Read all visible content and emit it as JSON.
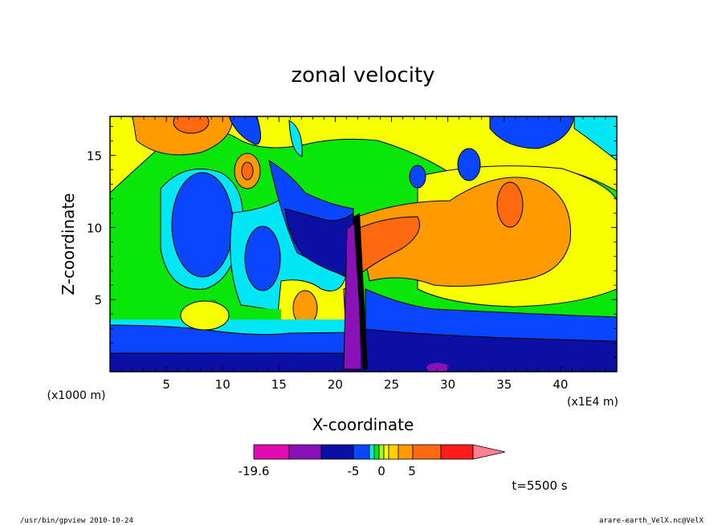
{
  "chart_data": {
    "type": "heatmap",
    "title": "zonal velocity",
    "xlabel": "X-coordinate",
    "ylabel": "Z-coordinate",
    "x_unit_left": "(x1000 m)",
    "x_unit_right": "(x1E4 m)",
    "xlim": [
      0,
      45
    ],
    "ylim": [
      0,
      17.7
    ],
    "x_ticks": [
      5,
      10,
      15,
      20,
      25,
      30,
      35,
      40
    ],
    "y_ticks": [
      5,
      10,
      15
    ],
    "colorbar": {
      "labels": [
        {
          "value": -19.6,
          "text": "-19.6"
        },
        {
          "value": -5,
          "text": "-5"
        },
        {
          "value": 0,
          "text": "0"
        },
        {
          "value": 5,
          "text": "5"
        }
      ],
      "colors": [
        "#e20ab0",
        "#8a10b8",
        "#0c0fa4",
        "#0a46ff",
        "#00e6f4",
        "#08e60a",
        "#a8f42c",
        "#f8ff00",
        "#ffd000",
        "#ff9a00",
        "#ff6a10",
        "#ff1c1c",
        "#ff8090"
      ]
    },
    "time_label": "t=5500 s",
    "footer_left": "/usr/bin/gpview  2010-10-24",
    "footer_right": "arare-earth_VelX.nc@VelX"
  },
  "colors": {
    "dark_blue": "#0c0fa4",
    "blue": "#0a46ff",
    "cyan": "#00e6f4",
    "green": "#08e60a",
    "yellow": "#f8ff00",
    "orange": "#ff9a00",
    "dark_orange": "#ff6a10",
    "red": "#ff1c1c",
    "purple": "#8a10b8",
    "magenta": "#e20ab0"
  }
}
